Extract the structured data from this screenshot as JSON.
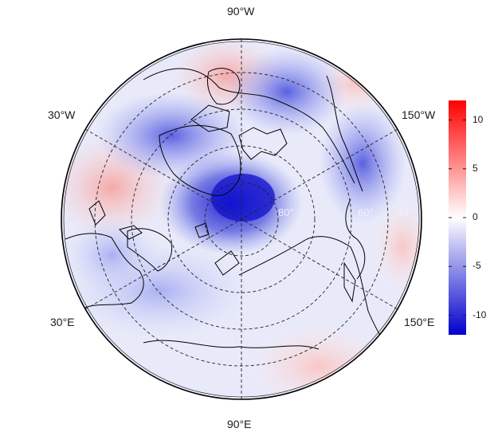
{
  "map": {
    "projection": "north-polar-stereographic",
    "lon_labels": {
      "top": "90°W",
      "upper_left": "30°W",
      "upper_right": "150°W",
      "lower_left": "30°E",
      "lower_right": "150°E",
      "bottom": "90°E"
    },
    "lat_labels": [
      "80°",
      "60°",
      "40°"
    ],
    "anomaly_field": {
      "units_shown": "none",
      "features": [
        {
          "name": "central-arctic-low",
          "value": -11
        },
        {
          "name": "greenland-low",
          "value": -8
        },
        {
          "name": "north-america-low",
          "value": -7
        },
        {
          "name": "bering-low",
          "value": -6
        },
        {
          "name": "north-atlantic-high",
          "value": 4
        },
        {
          "name": "hudson-bay-high",
          "value": 3
        },
        {
          "name": "east-asia-high",
          "value": 2
        }
      ]
    }
  },
  "colorbar": {
    "range": [
      -12,
      12
    ],
    "ticks": [
      "10",
      "5",
      "0",
      "-5",
      "-10"
    ],
    "tick_values": [
      10,
      5,
      0,
      -5,
      -10
    ],
    "colors": {
      "low": "#0000cc",
      "mid": "#ffffff",
      "high": "#ff0000"
    }
  }
}
